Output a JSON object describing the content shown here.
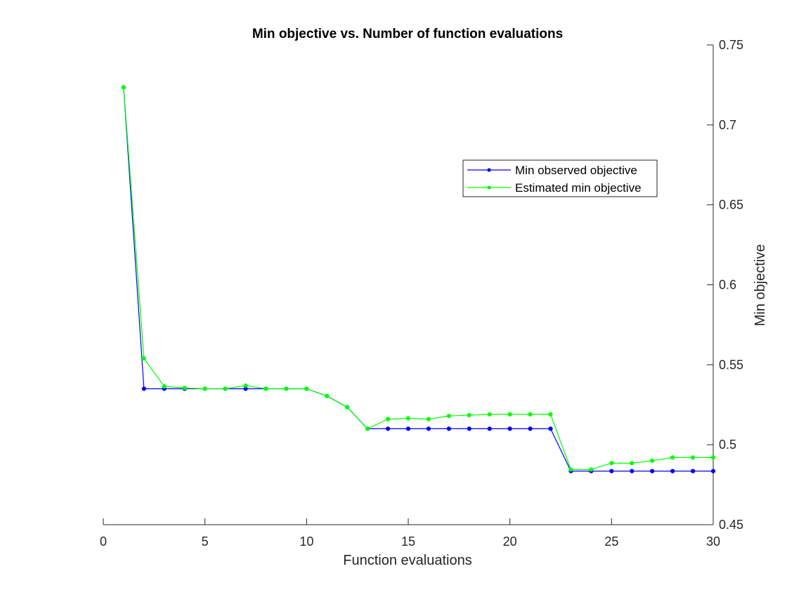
{
  "chart_data": {
    "type": "line",
    "title": "Min objective vs. Number of function evaluations",
    "xlabel": "Function evaluations",
    "ylabel": "Min objective",
    "xlim": [
      0,
      30
    ],
    "ylim": [
      0.45,
      0.75
    ],
    "x_ticks": [
      "0",
      "5",
      "10",
      "15",
      "20",
      "25",
      "30"
    ],
    "y_ticks": [
      "0.45",
      "0.5",
      "0.55",
      "0.6",
      "0.65",
      "0.7",
      "0.75"
    ],
    "y_axis_position": "right",
    "grid": false,
    "legend_position": "upper-right-inside",
    "x": [
      1,
      2,
      3,
      4,
      5,
      6,
      7,
      8,
      9,
      10,
      11,
      12,
      13,
      14,
      15,
      16,
      17,
      18,
      19,
      20,
      21,
      22,
      23,
      24,
      25,
      26,
      27,
      28,
      29,
      30
    ],
    "series": [
      {
        "name": "Min observed objective",
        "color": "#0000ff",
        "values": [
          0.7235,
          0.535,
          0.535,
          0.535,
          0.535,
          0.535,
          0.535,
          0.535,
          0.535,
          0.535,
          0.5305,
          0.5235,
          0.51,
          0.51,
          0.51,
          0.51,
          0.51,
          0.51,
          0.51,
          0.51,
          0.51,
          0.51,
          0.4835,
          0.4835,
          0.4835,
          0.4835,
          0.4835,
          0.4835,
          0.4835,
          0.4835
        ]
      },
      {
        "name": "Estimated min objective",
        "color": "#00ff00",
        "values": [
          0.7235,
          0.554,
          0.5365,
          0.5355,
          0.535,
          0.535,
          0.537,
          0.535,
          0.535,
          0.535,
          0.5305,
          0.5235,
          0.51,
          0.516,
          0.5165,
          0.516,
          0.518,
          0.5185,
          0.519,
          0.519,
          0.519,
          0.519,
          0.4845,
          0.4845,
          0.4885,
          0.4885,
          0.49,
          0.492,
          0.492,
          0.492
        ]
      }
    ]
  }
}
